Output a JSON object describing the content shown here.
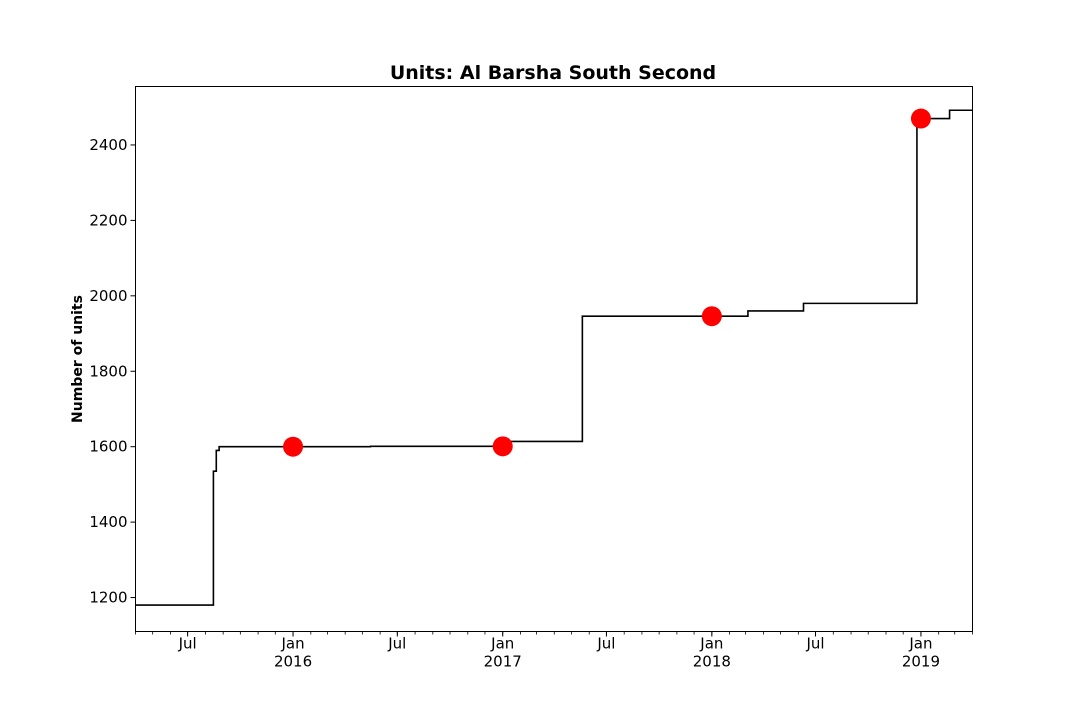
{
  "chart_data": {
    "type": "line",
    "title": "Units: Al Barsha South Second",
    "xlabel": "",
    "ylabel": "Number of units",
    "xlim": [
      "2015-04-01",
      "2019-04-01"
    ],
    "ylim": [
      1110,
      2555
    ],
    "grid": false,
    "y_ticks": [
      1200,
      1400,
      1600,
      1800,
      2000,
      2200,
      2400
    ],
    "x_ticks": [
      {
        "date": "2015-07-01",
        "label": "Jul",
        "sublabel": ""
      },
      {
        "date": "2016-01-01",
        "label": "Jan",
        "sublabel": "2016"
      },
      {
        "date": "2016-07-01",
        "label": "Jul",
        "sublabel": ""
      },
      {
        "date": "2017-01-01",
        "label": "Jan",
        "sublabel": "2017"
      },
      {
        "date": "2017-07-01",
        "label": "Jul",
        "sublabel": ""
      },
      {
        "date": "2018-01-01",
        "label": "Jan",
        "sublabel": "2018"
      },
      {
        "date": "2018-07-01",
        "label": "Jul",
        "sublabel": ""
      },
      {
        "date": "2019-01-01",
        "label": "Jan",
        "sublabel": "2019"
      }
    ],
    "series": [
      {
        "type": "step",
        "color": "#000000",
        "points": [
          [
            "2015-04-01",
            1180
          ],
          [
            "2015-08-15",
            1180
          ],
          [
            "2015-08-15",
            1535
          ],
          [
            "2015-08-20",
            1535
          ],
          [
            "2015-08-20",
            1590
          ],
          [
            "2015-08-25",
            1590
          ],
          [
            "2015-08-25",
            1600
          ],
          [
            "2016-05-15",
            1600
          ],
          [
            "2016-05-15",
            1601
          ],
          [
            "2017-01-01",
            1601
          ],
          [
            "2017-01-01",
            1614
          ],
          [
            "2017-05-20",
            1614
          ],
          [
            "2017-05-20",
            1946
          ],
          [
            "2018-03-05",
            1946
          ],
          [
            "2018-03-05",
            1960
          ],
          [
            "2018-06-10",
            1960
          ],
          [
            "2018-06-10",
            1980
          ],
          [
            "2018-12-25",
            1980
          ],
          [
            "2018-12-25",
            2470
          ],
          [
            "2019-02-20",
            2470
          ],
          [
            "2019-02-20",
            2492
          ],
          [
            "2019-04-01",
            2492
          ]
        ]
      },
      {
        "type": "scatter",
        "color": "#ff0000",
        "points": [
          [
            "2016-01-01",
            1600
          ],
          [
            "2017-01-01",
            1601
          ],
          [
            "2018-01-01",
            1946
          ],
          [
            "2019-01-01",
            2470
          ]
        ]
      }
    ]
  }
}
